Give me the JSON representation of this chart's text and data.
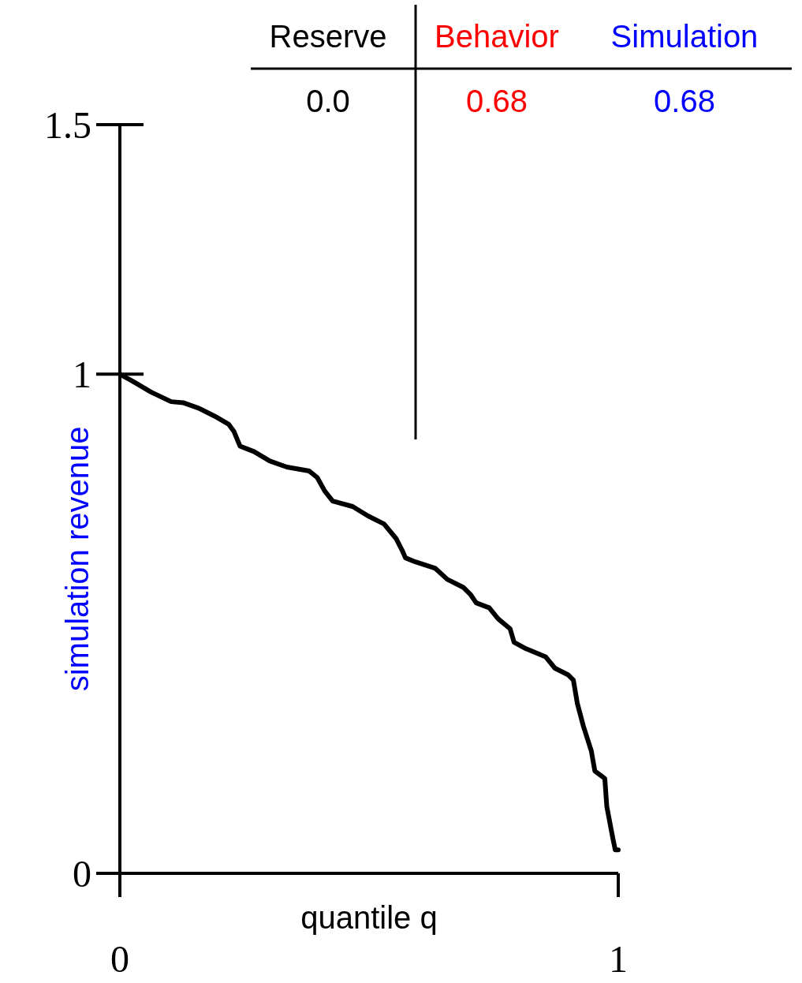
{
  "chart_data": {
    "type": "line",
    "xlabel": "quantile q",
    "ylabel": "simulation revenue",
    "xlim": [
      0,
      1
    ],
    "ylim": [
      0,
      1.5
    ],
    "xticks": [
      0,
      1
    ],
    "yticks": [
      0,
      1,
      1.5
    ],
    "grid": false,
    "annotations": [
      "Reserve",
      "Behavior",
      "Simulation",
      "0.0",
      "0.68",
      "0.68"
    ],
    "series": [
      {
        "color": "#000000",
        "x": [
          0,
          0.024,
          0.063,
          0.103,
          0.127,
          0.158,
          0.19,
          0.218,
          0.229,
          0.241,
          0.269,
          0.301,
          0.335,
          0.38,
          0.396,
          0.411,
          0.427,
          0.467,
          0.498,
          0.53,
          0.554,
          0.566,
          0.573,
          0.593,
          0.633,
          0.657,
          0.689,
          0.704,
          0.715,
          0.741,
          0.759,
          0.783,
          0.791,
          0.815,
          0.854,
          0.873,
          0.899,
          0.91,
          0.918,
          0.93,
          0.946,
          0.953,
          0.973,
          0.977,
          0.989,
          0.994,
          1.0
        ],
        "values": [
          1.0,
          0.987,
          0.964,
          0.945,
          0.943,
          0.932,
          0.916,
          0.9,
          0.885,
          0.856,
          0.845,
          0.826,
          0.814,
          0.806,
          0.793,
          0.766,
          0.746,
          0.735,
          0.716,
          0.7,
          0.671,
          0.648,
          0.632,
          0.624,
          0.611,
          0.589,
          0.573,
          0.558,
          0.542,
          0.532,
          0.51,
          0.49,
          0.463,
          0.45,
          0.434,
          0.411,
          0.398,
          0.387,
          0.34,
          0.295,
          0.245,
          0.205,
          0.19,
          0.134,
          0.071,
          0.047,
          0.047
        ]
      }
    ]
  }
}
